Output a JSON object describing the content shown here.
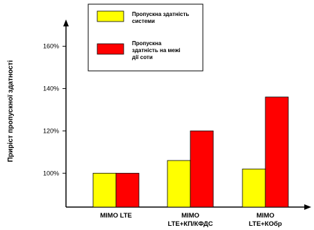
{
  "chart_data": {
    "type": "bar",
    "ylabel": "Приріст пропускної здатності",
    "y_ticks": [
      "100%",
      "120%",
      "140%",
      "160%"
    ],
    "ylim": [
      84,
      172
    ],
    "categories": [
      [
        "MIMO LTE"
      ],
      [
        "MIMO",
        "LTE+КП/КФДС"
      ],
      [
        "MIMO",
        "LTE+КОбр"
      ]
    ],
    "series": [
      {
        "name_lines": [
          "Пропускна здатність",
          "системи"
        ],
        "color": "#ffff00",
        "values": [
          100,
          106,
          102
        ]
      },
      {
        "name_lines": [
          "Пропускна",
          "здатність на межі",
          "дії соти"
        ],
        "color": "#ff0000",
        "values": [
          100,
          120,
          136
        ]
      }
    ],
    "legend_position": "top"
  }
}
